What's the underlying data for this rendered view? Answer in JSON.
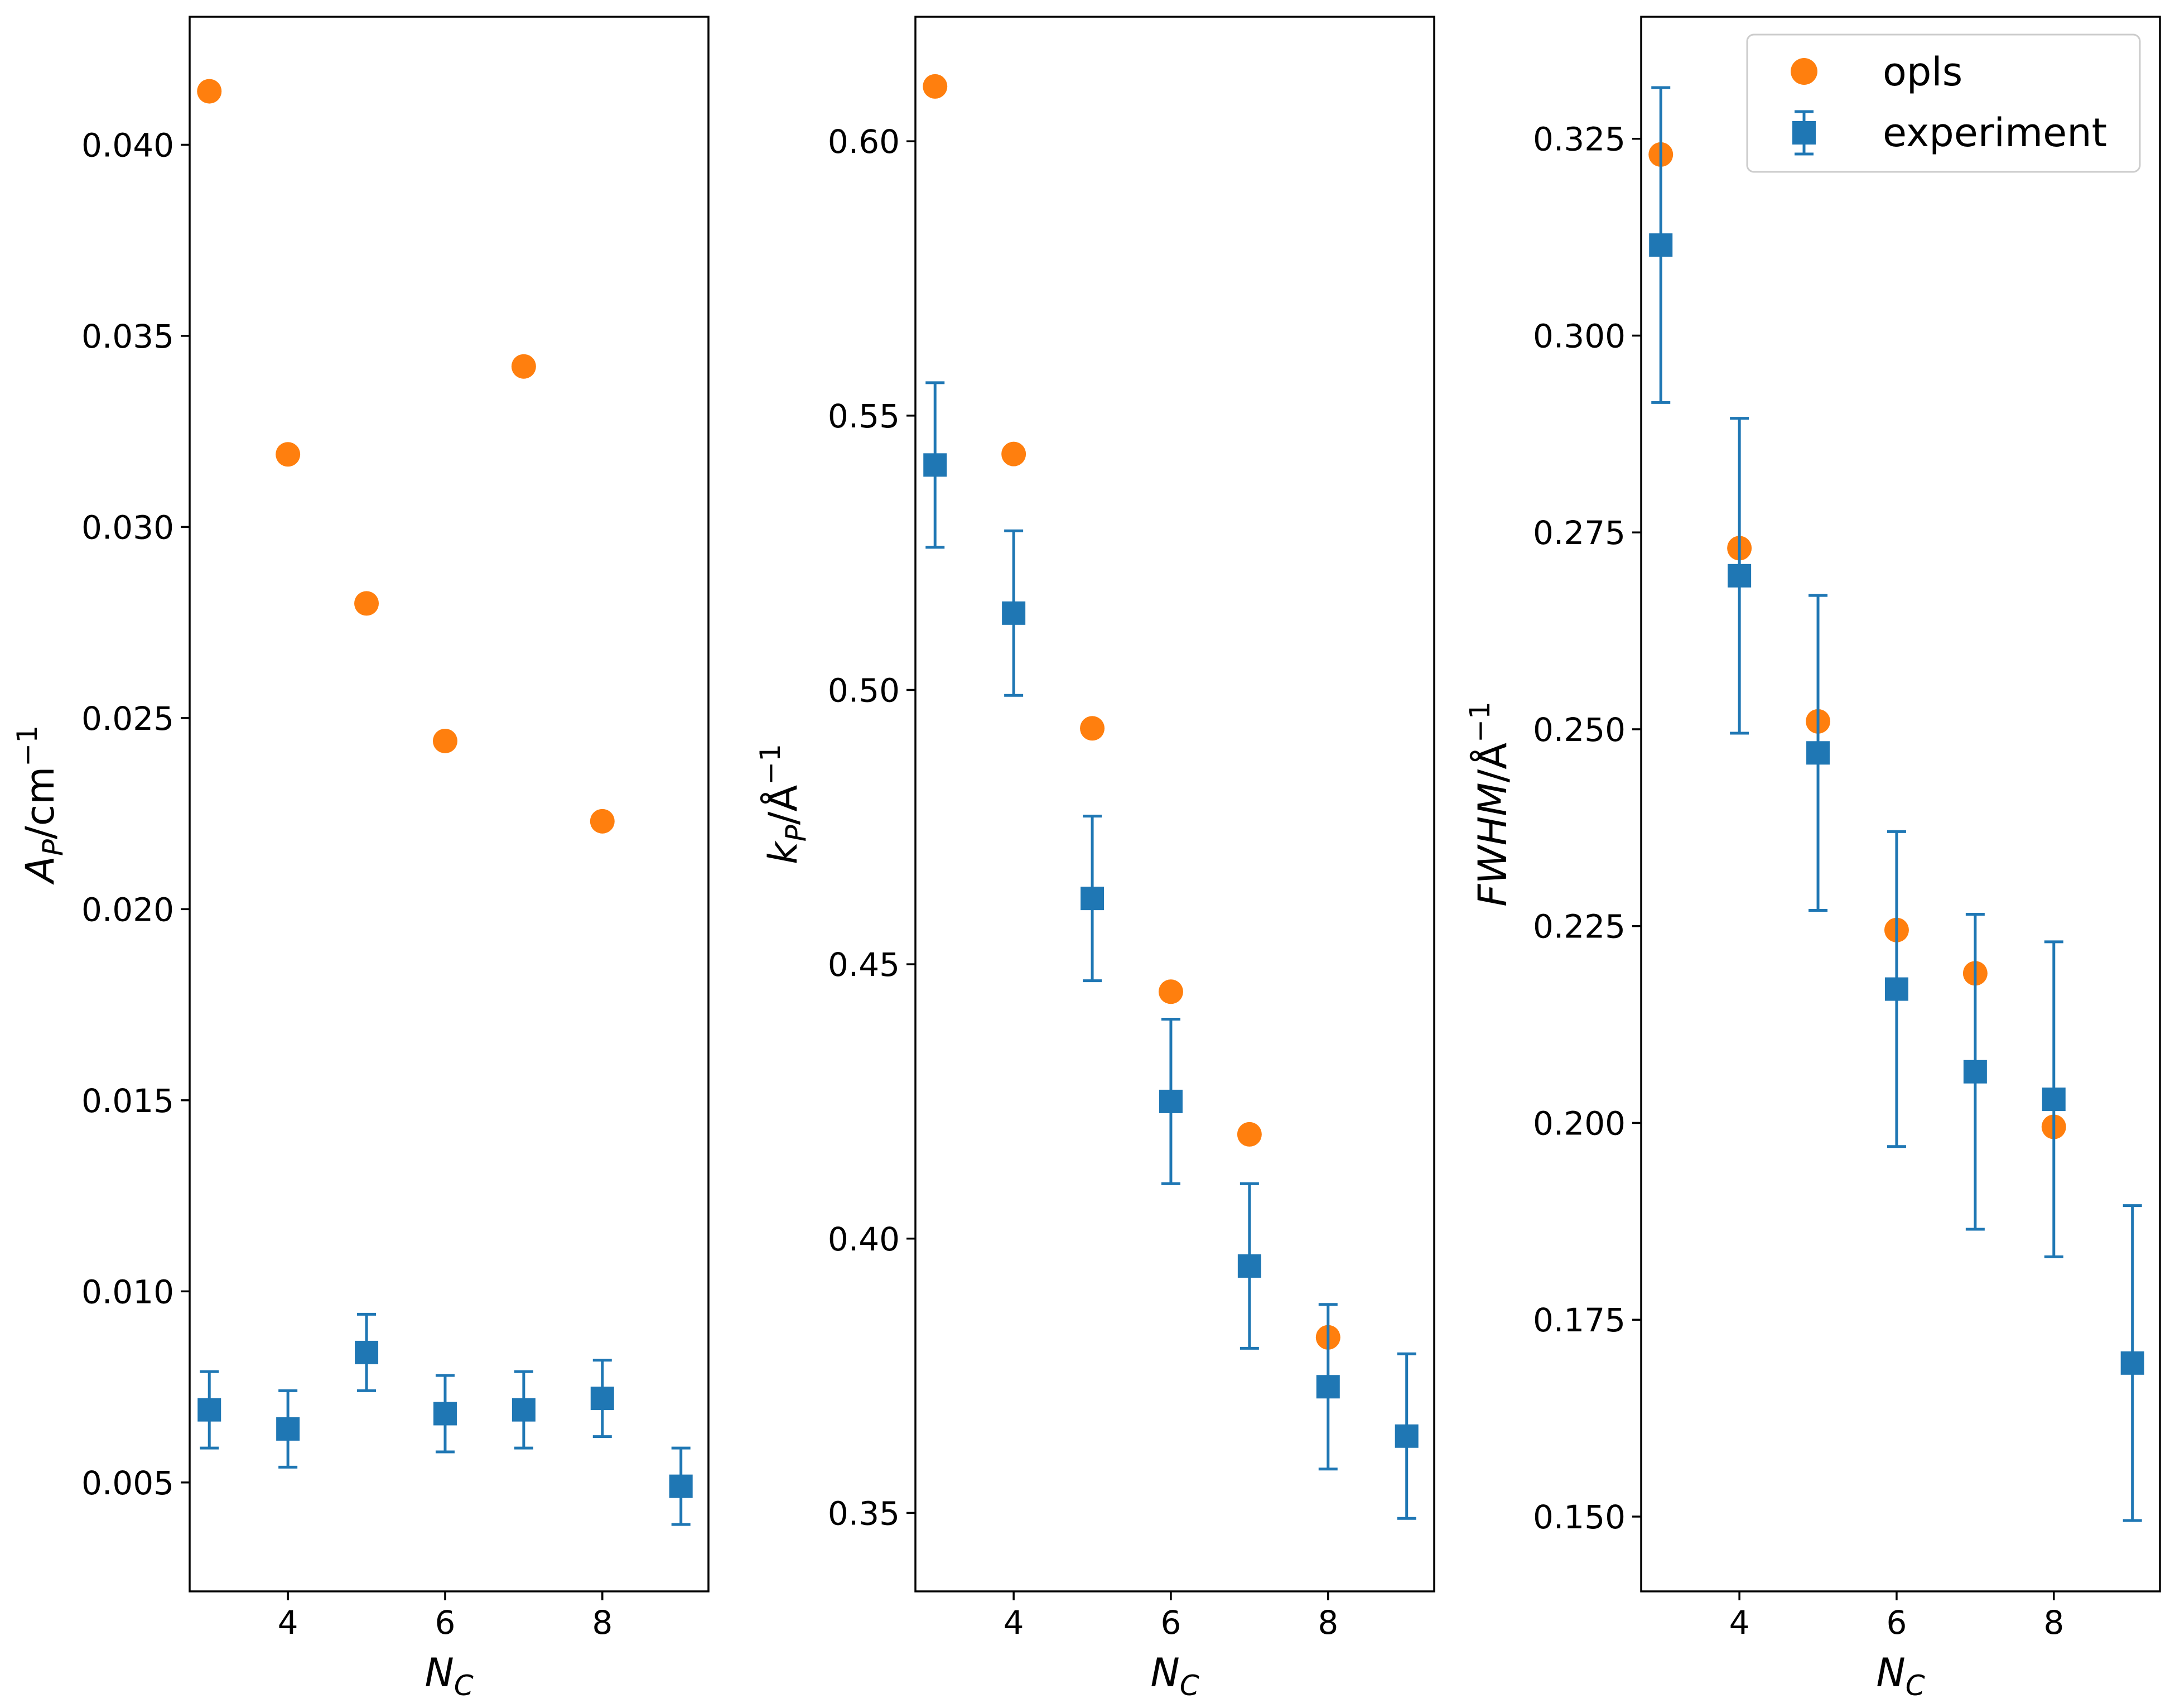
{
  "colors": {
    "opls": "#ff7f0e",
    "experiment": "#1f77b4",
    "axes": "#000000",
    "background": "#ffffff"
  },
  "legend": {
    "location": "upper right",
    "entries": [
      {
        "label": "opls",
        "marker": "circle",
        "color": "#ff7f0e"
      },
      {
        "label": "experiment",
        "marker": "square-errorbar",
        "color": "#1f77b4"
      }
    ]
  },
  "chart_data": [
    {
      "type": "scatter",
      "title": "",
      "xlabel_main": "N",
      "xlabel_sub": "C",
      "ylabel_main": "A",
      "ylabel_sub": "P",
      "ylabel_rest": "/cm",
      "ylabel_sup": "−1",
      "xlim": [
        2.75,
        9.35
      ],
      "ylim": [
        0.00215,
        0.04335
      ],
      "xticks": [
        4,
        6,
        8
      ],
      "xtick_labels": [
        "4",
        "6",
        "8"
      ],
      "yticks": [
        0.005,
        0.01,
        0.015,
        0.02,
        0.025,
        0.03,
        0.035,
        0.04
      ],
      "ytick_labels": [
        "0.005",
        "0.010",
        "0.015",
        "0.020",
        "0.025",
        "0.030",
        "0.035",
        "0.040"
      ],
      "series": [
        {
          "name": "opls",
          "marker": "circle",
          "x": [
            3,
            4,
            5,
            6,
            7,
            8
          ],
          "y": [
            0.0414,
            0.0319,
            0.028,
            0.0244,
            0.0342,
            0.0223
          ]
        },
        {
          "name": "experiment",
          "marker": "square",
          "x": [
            3,
            4,
            5,
            6,
            7,
            8,
            9
          ],
          "y": [
            0.0069,
            0.0064,
            0.0084,
            0.0068,
            0.0069,
            0.0072,
            0.0049
          ],
          "yerr": [
            0.001,
            0.001,
            0.001,
            0.001,
            0.001,
            0.001,
            0.001
          ]
        }
      ]
    },
    {
      "type": "scatter",
      "title": "",
      "xlabel_main": "N",
      "xlabel_sub": "C",
      "ylabel_main": "k",
      "ylabel_sub": "P",
      "ylabel_rest": "/Å",
      "ylabel_sup": "−1",
      "xlim": [
        2.75,
        9.35
      ],
      "ylim": [
        0.3357,
        0.6227
      ],
      "xticks": [
        4,
        6,
        8
      ],
      "xtick_labels": [
        "4",
        "6",
        "8"
      ],
      "yticks": [
        0.35,
        0.4,
        0.45,
        0.5,
        0.55,
        0.6
      ],
      "ytick_labels": [
        "0.35",
        "0.40",
        "0.45",
        "0.50",
        "0.55",
        "0.60"
      ],
      "series": [
        {
          "name": "opls",
          "marker": "circle",
          "x": [
            3,
            4,
            5,
            6,
            7,
            8
          ],
          "y": [
            0.61,
            0.543,
            0.493,
            0.445,
            0.419,
            0.382
          ]
        },
        {
          "name": "experiment",
          "marker": "square",
          "x": [
            3,
            4,
            5,
            6,
            7,
            8,
            9
          ],
          "y": [
            0.541,
            0.514,
            0.462,
            0.425,
            0.395,
            0.373,
            0.364
          ],
          "yerr": [
            0.015,
            0.015,
            0.015,
            0.015,
            0.015,
            0.015,
            0.015
          ]
        }
      ]
    },
    {
      "type": "scatter",
      "title": "",
      "xlabel_main": "N",
      "xlabel_sub": "C",
      "ylabel_main": "FWHM",
      "ylabel_sub": "",
      "ylabel_rest": "/Å",
      "ylabel_sup": "−1",
      "xlim": [
        2.75,
        9.35
      ],
      "ylim": [
        0.1405,
        0.3405
      ],
      "xticks": [
        4,
        6,
        8
      ],
      "xtick_labels": [
        "4",
        "6",
        "8"
      ],
      "yticks": [
        0.15,
        0.175,
        0.2,
        0.225,
        0.25,
        0.275,
        0.3,
        0.325
      ],
      "ytick_labels": [
        "0.150",
        "0.175",
        "0.200",
        "0.225",
        "0.250",
        "0.275",
        "0.300",
        "0.325"
      ],
      "series": [
        {
          "name": "opls",
          "marker": "circle",
          "x": [
            3,
            4,
            5,
            6,
            7,
            8
          ],
          "y": [
            0.323,
            0.273,
            0.251,
            0.2245,
            0.219,
            0.1995
          ]
        },
        {
          "name": "experiment",
          "marker": "square",
          "x": [
            3,
            4,
            5,
            6,
            7,
            8,
            9
          ],
          "y": [
            0.3115,
            0.2695,
            0.247,
            0.217,
            0.2065,
            0.203,
            0.1695
          ],
          "yerr": [
            0.02,
            0.02,
            0.02,
            0.02,
            0.02,
            0.02,
            0.02
          ]
        }
      ]
    }
  ]
}
